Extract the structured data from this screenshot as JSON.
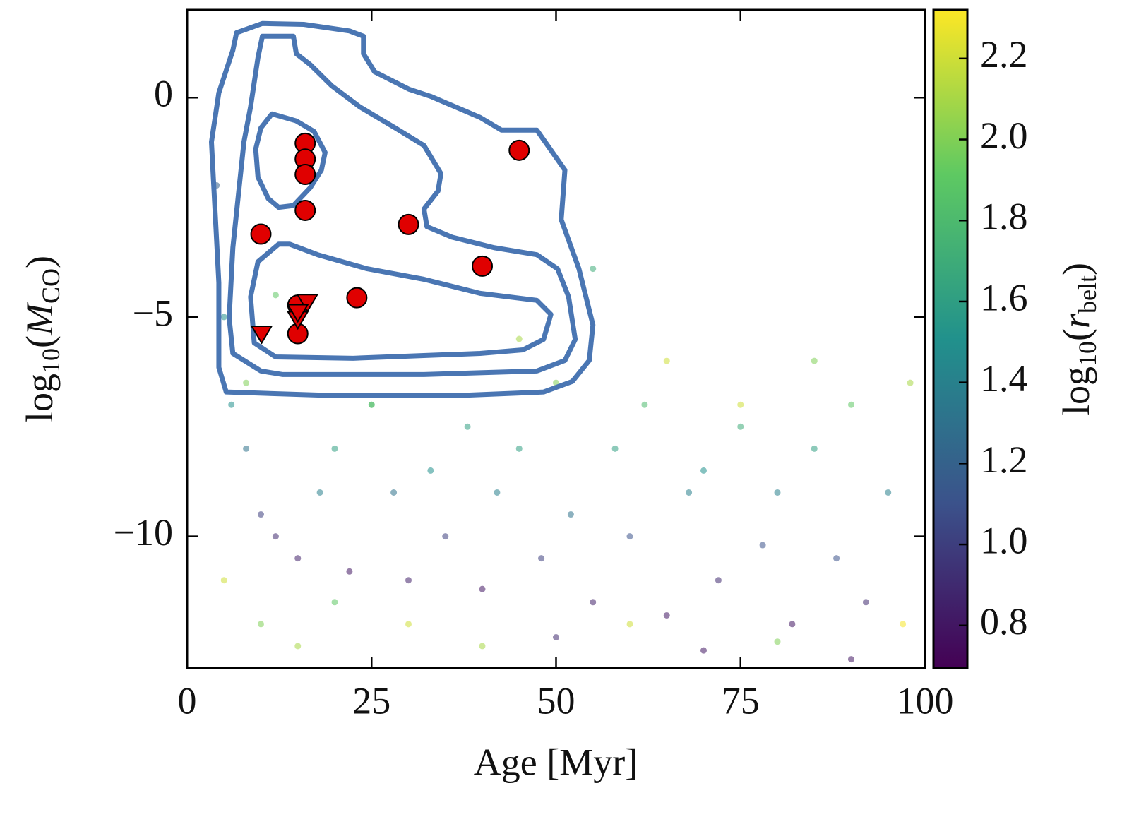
{
  "chart_data": {
    "type": "scatter",
    "x_label": "Age [Myr]",
    "y_label": [
      "log",
      "10",
      "(",
      "M",
      "CO",
      ")"
    ],
    "xlim": [
      0,
      100
    ],
    "ylim": [
      -13,
      2
    ],
    "xticks": [
      0,
      25,
      50,
      75,
      100
    ],
    "yticks": [
      {
        "value": 0,
        "label": "0"
      },
      {
        "value": -5,
        "label": "−5"
      },
      {
        "value": -10,
        "label": "−10"
      }
    ],
    "background": {
      "x": [
        4,
        5,
        6,
        8,
        10,
        12,
        15,
        18,
        20,
        22,
        25,
        28,
        30,
        33,
        35,
        38,
        40,
        42,
        45,
        48,
        50,
        52,
        55,
        58,
        60,
        62,
        65,
        68,
        70,
        72,
        75,
        78,
        80,
        82,
        85,
        88,
        90,
        92,
        95,
        98,
        5,
        10,
        15,
        20,
        30,
        40,
        50,
        60,
        70,
        80,
        90,
        97,
        8,
        25,
        45,
        65,
        85,
        12,
        55,
        75
      ],
      "y": [
        -2,
        -5,
        -7,
        -8,
        -9.5,
        -10,
        -10.5,
        -9,
        -8,
        -10.8,
        -7,
        -9,
        -11,
        -8.5,
        -10,
        -7.5,
        -11.2,
        -9,
        -8,
        -10.5,
        -6.5,
        -9.5,
        -11.5,
        -8,
        -10,
        -7,
        -11.8,
        -9,
        -8.5,
        -11,
        -7.5,
        -10.2,
        -9,
        -12,
        -8,
        -10.5,
        -7,
        -11.5,
        -9,
        -6.5,
        -11,
        -12,
        -12.5,
        -11.5,
        -12,
        -12.5,
        -12.3,
        -12,
        -12.6,
        -12.4,
        -12.8,
        -12,
        -6.5,
        -7,
        -5.5,
        -6,
        -6,
        -4.5,
        -3.9,
        -7
      ],
      "c": [
        1.2,
        1.5,
        1.5,
        1.3,
        1.0,
        0.9,
        0.85,
        1.4,
        1.6,
        0.8,
        1.7,
        1.3,
        0.85,
        1.5,
        1.0,
        1.6,
        0.8,
        1.4,
        1.6,
        1.0,
        2.0,
        1.3,
        0.85,
        1.6,
        1.1,
        1.8,
        0.8,
        1.4,
        1.5,
        0.9,
        1.7,
        1.1,
        1.4,
        0.8,
        1.6,
        1.1,
        1.9,
        0.9,
        1.4,
        2.1,
        2.2,
        2.0,
        2.1,
        1.9,
        2.2,
        2.1,
        0.9,
        2.2,
        0.8,
        2.0,
        0.8,
        2.3,
        2.0,
        1.9,
        2.1,
        2.2,
        2.0,
        1.9,
        1.7,
        2.2
      ]
    },
    "contours": [
      {
        "color": "#4a76b3",
        "x": [
          6.7,
          10.2,
          15.8,
          22.0,
          23.9,
          23.9,
          25.4,
          30.1,
          33.0,
          39.7,
          42.6,
          47.4,
          51.2,
          50.7,
          53.1,
          55.0,
          54.5,
          52.2,
          48.3,
          36.8,
          19.6,
          5.3,
          4.3,
          4.3,
          3.8,
          3.3,
          4.3,
          6.2
        ],
        "y": [
          1.48,
          1.69,
          1.67,
          1.52,
          1.4,
          1.0,
          0.59,
          0.19,
          0.03,
          -0.45,
          -0.74,
          -0.74,
          -1.65,
          -2.78,
          -3.9,
          -5.18,
          -5.99,
          -6.47,
          -6.71,
          -6.79,
          -6.79,
          -6.71,
          -6.15,
          -4.22,
          -2.62,
          -1.01,
          0.11,
          1.08
        ]
      },
      {
        "color": "#4a76b3",
        "x": [
          10.2,
          14.4,
          14.8,
          16.7,
          19.6,
          23.4,
          28.2,
          32.1,
          34.4,
          34.0,
          32.1,
          32.5,
          35.9,
          41.6,
          47.4,
          50.2,
          51.7,
          52.6,
          51.2,
          47.4,
          32.1,
          12.9,
          10.0,
          6.2,
          5.7,
          6.2,
          7.2,
          7.7,
          8.6,
          9.6
        ],
        "y": [
          1.4,
          1.4,
          1.0,
          0.75,
          0.27,
          -0.21,
          -0.69,
          -1.09,
          -1.73,
          -2.13,
          -2.54,
          -2.94,
          -3.18,
          -3.42,
          -3.58,
          -3.9,
          -4.54,
          -5.51,
          -5.99,
          -6.23,
          -6.31,
          -6.31,
          -6.23,
          -5.83,
          -5.02,
          -3.42,
          -1.81,
          -1.01,
          -0.21,
          0.91
        ]
      },
      {
        "color": "#4a76b3",
        "x": [
          12.4,
          13.9,
          17.7,
          24.4,
          32.1,
          39.7,
          47.4,
          49.3,
          48.3,
          45.5,
          39.7,
          22.5,
          12.0,
          9.1,
          8.6,
          9.6
        ],
        "y": [
          -3.34,
          -3.34,
          -3.58,
          -3.9,
          -4.14,
          -4.46,
          -4.62,
          -4.94,
          -5.51,
          -5.75,
          -5.83,
          -5.94,
          -5.91,
          -5.59,
          -4.54,
          -3.74
        ]
      },
      {
        "color": "#4a76b3",
        "x": [
          11.5,
          14.8,
          17.2,
          18.7,
          18.2,
          16.7,
          14.4,
          12.4,
          11.0,
          9.6,
          9.3,
          10.0
        ],
        "y": [
          -0.37,
          -0.53,
          -0.77,
          -1.25,
          -1.65,
          -2.05,
          -2.46,
          -2.5,
          -2.3,
          -1.81,
          -1.17,
          -0.69
        ]
      }
    ],
    "detections": {
      "color": "#e00000",
      "x": [
        16,
        16,
        16,
        16,
        10,
        30,
        45,
        40,
        23,
        15,
        15
      ],
      "y": [
        -1.04,
        -1.4,
        -1.75,
        -2.57,
        -3.11,
        -2.89,
        -1.2,
        -3.84,
        -4.56,
        -4.73,
        -5.38
      ]
    },
    "upper_limits": {
      "color": "#e00000",
      "x": [
        10.1,
        15,
        16.3,
        15
      ],
      "y": [
        -5.39,
        -5.06,
        -4.67,
        -4.9
      ]
    },
    "colorbar": {
      "cmap": "viridis",
      "label": [
        "log",
        "10",
        "(",
        "r",
        "belt",
        ")"
      ],
      "lim": [
        0.695,
        2.32
      ],
      "ticks": [
        0.8,
        {
          "value": 1,
          "label": "1.0"
        },
        1.2,
        1.4,
        1.6,
        1.8,
        {
          "value": 2,
          "label": "2.0"
        },
        2.2
      ]
    }
  }
}
